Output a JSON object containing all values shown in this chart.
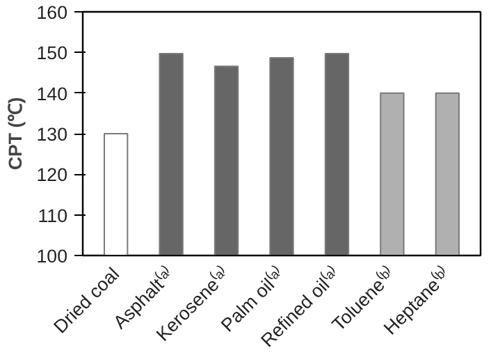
{
  "chart_data": {
    "type": "bar",
    "ylabel": "CPT (℃)",
    "categories": [
      "Dried coal",
      "Asphalt⁽ᵃ⁾",
      "Kerosene⁽ᵃ⁾",
      "Palm oil⁽ᵃ⁾",
      "Refined oil⁽ᵃ⁾",
      "Toluene⁽ᵇ⁾",
      "Heptane⁽ᵇ⁾"
    ],
    "values": [
      130,
      149.7,
      146.6,
      148.7,
      149.7,
      140,
      140
    ],
    "colors": [
      "#ffffff",
      "#666666",
      "#666666",
      "#666666",
      "#666666",
      "#b0b0b0",
      "#b0b0b0"
    ],
    "ylim": [
      100,
      160
    ],
    "yticks": [
      100,
      110,
      120,
      130,
      140,
      150,
      160
    ],
    "grid": false
  }
}
